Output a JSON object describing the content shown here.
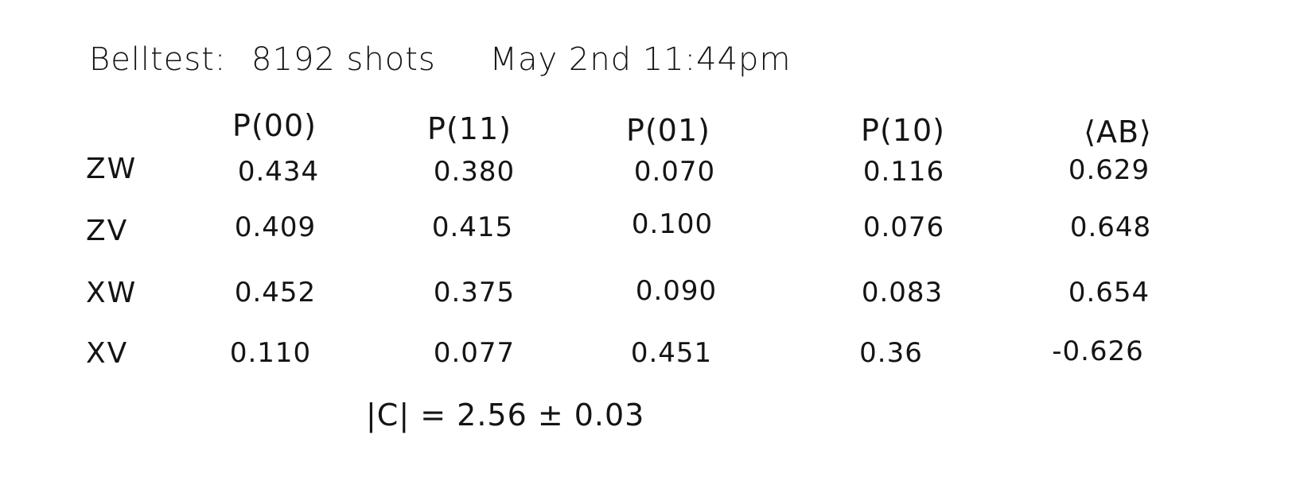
{
  "header": {
    "label": "Belltest:",
    "shots": "8192 shots",
    "datetime": "May 2nd 11:44pm"
  },
  "table": {
    "columns": [
      "P(00)",
      "P(11)",
      "P(01)",
      "P(10)",
      "⟨AB⟩"
    ],
    "rows": [
      {
        "label": "ZW",
        "values": [
          "0.434",
          "0.380",
          "0.070",
          "0.116",
          "0.629"
        ]
      },
      {
        "label": "ZV",
        "values": [
          "0.409",
          "0.415",
          "0.100",
          "0.076",
          "0.648"
        ]
      },
      {
        "label": "XW",
        "values": [
          "0.452",
          "0.375",
          "0.090",
          "0.083",
          "0.654"
        ]
      },
      {
        "label": "XV",
        "values": [
          "0.110",
          "0.077",
          "0.451",
          "0.36",
          "-0.626"
        ]
      }
    ]
  },
  "summary": "|C| = 2.56 ± 0.03"
}
